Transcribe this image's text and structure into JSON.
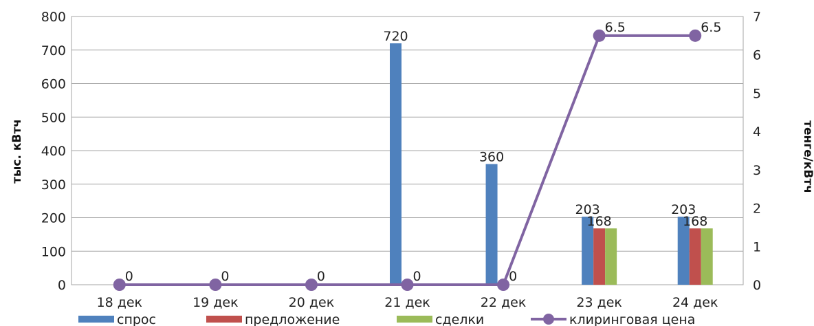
{
  "chart_data": {
    "type": "bar",
    "categories": [
      "18 дек",
      "19 дек",
      "20 дек",
      "21 дек",
      "22 дек",
      "23 дек",
      "24 дек"
    ],
    "series": [
      {
        "name": "спрос",
        "kind": "bar",
        "axis": "left",
        "color": "#4f81bd",
        "values": [
          0,
          0,
          0,
          720,
          360,
          203,
          203
        ],
        "labels": [
          "",
          "",
          "",
          "720",
          "360",
          "203",
          "203"
        ]
      },
      {
        "name": "предложение",
        "kind": "bar",
        "axis": "left",
        "color": "#c0504d",
        "values": [
          0,
          0,
          0,
          0,
          0,
          168,
          168
        ],
        "labels": [
          "",
          "",
          "",
          "",
          "",
          "168",
          "168"
        ]
      },
      {
        "name": "сделки",
        "kind": "bar",
        "axis": "left",
        "color": "#9bbb59",
        "values": [
          0,
          0,
          0,
          0,
          0,
          168,
          168
        ],
        "labels": [
          "",
          "",
          "",
          "",
          "",
          "",
          ""
        ]
      },
      {
        "name": "клиринговая цена",
        "kind": "line",
        "axis": "right",
        "color": "#8064a2",
        "values": [
          0,
          0,
          0,
          0,
          0,
          6.5,
          6.5
        ],
        "labels": [
          "0",
          "0",
          "0",
          "0",
          "0",
          "6.5",
          "6.5"
        ]
      }
    ],
    "ylabel": "тыс. кВтч",
    "y2label": "тенге/кВтч",
    "ylim": [
      0,
      800
    ],
    "y2lim": [
      0,
      7
    ],
    "yticks": [
      "0",
      "100",
      "200",
      "300",
      "400",
      "500",
      "600",
      "700",
      "800"
    ],
    "y2ticks": [
      "0",
      "1",
      "2",
      "3",
      "4",
      "5",
      "6",
      "7"
    ],
    "grid": true,
    "legend": "bottom"
  }
}
